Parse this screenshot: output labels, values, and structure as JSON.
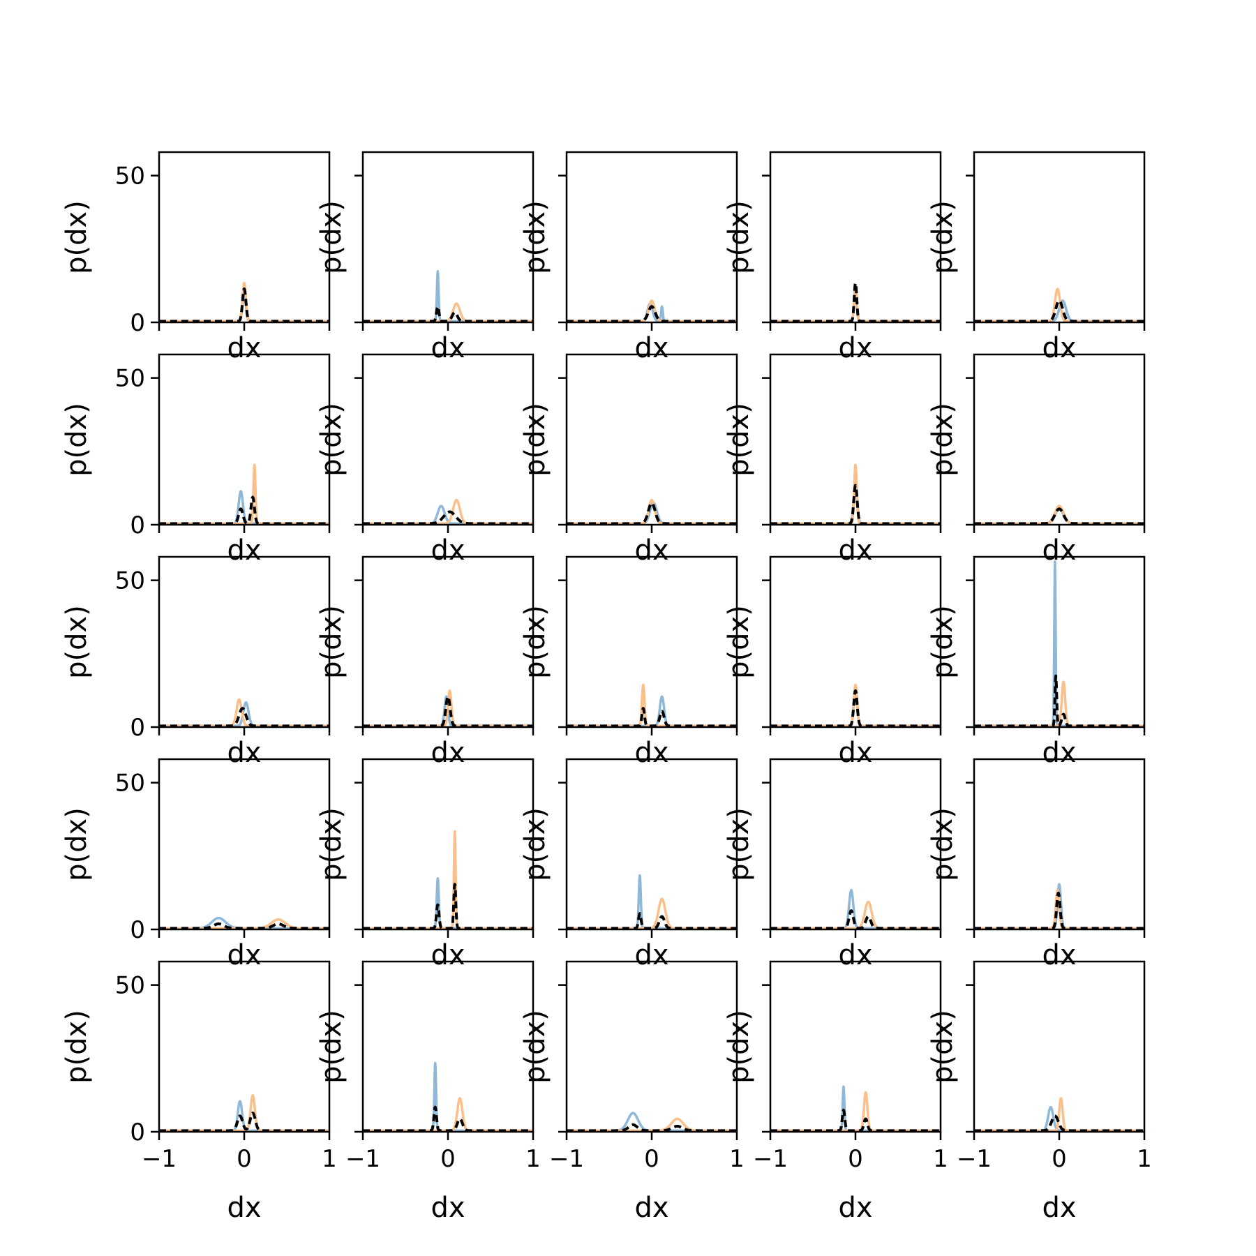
{
  "chart_data": {
    "type": "line",
    "layout": "grid",
    "rows": 5,
    "cols": 5,
    "xlabel": "dx",
    "ylabel": "p(dx)",
    "xlim": [
      -1,
      1
    ],
    "ylim": [
      0,
      58
    ],
    "xticks": [
      -1,
      0,
      1
    ],
    "xtick_labels": [
      "−1",
      "0",
      "1"
    ],
    "yticks": [
      0,
      50
    ],
    "ytick_labels": [
      "0",
      "50"
    ],
    "grid": false,
    "series_styles": [
      {
        "key": "blue",
        "color": "#8fb8d8",
        "dash": "solid"
      },
      {
        "key": "orange",
        "color": "#fbbf8a",
        "dash": "solid"
      },
      {
        "key": "black",
        "color": "#000000",
        "dash": "dashed"
      }
    ],
    "panels": [
      {
        "blue": [
          {
            "mu": 0.0,
            "sigma": 0.02,
            "amp": 9
          }
        ],
        "orange": [
          {
            "mu": 0.0,
            "sigma": 0.02,
            "amp": 13
          }
        ],
        "black": [
          {
            "mu": 0.0,
            "sigma": 0.02,
            "amp": 11
          }
        ]
      },
      {
        "blue": [
          {
            "mu": -0.12,
            "sigma": 0.01,
            "amp": 17
          }
        ],
        "orange": [
          {
            "mu": 0.1,
            "sigma": 0.04,
            "amp": 6
          }
        ],
        "black": [
          {
            "mu": -0.12,
            "sigma": 0.015,
            "amp": 5
          },
          {
            "mu": 0.08,
            "sigma": 0.03,
            "amp": 3
          }
        ]
      },
      {
        "blue": [
          {
            "mu": -0.02,
            "sigma": 0.03,
            "amp": 6
          },
          {
            "mu": 0.12,
            "sigma": 0.01,
            "amp": 5
          }
        ],
        "orange": [
          {
            "mu": 0.0,
            "sigma": 0.035,
            "amp": 7
          }
        ],
        "black": [
          {
            "mu": 0.0,
            "sigma": 0.04,
            "amp": 5
          }
        ]
      },
      {
        "blue": [
          {
            "mu": 0.0,
            "sigma": 0.015,
            "amp": 12
          }
        ],
        "orange": [
          {
            "mu": 0.0,
            "sigma": 0.015,
            "amp": 12
          }
        ],
        "black": [
          {
            "mu": 0.0,
            "sigma": 0.015,
            "amp": 13
          }
        ]
      },
      {
        "blue": [
          {
            "mu": 0.04,
            "sigma": 0.04,
            "amp": 7
          }
        ],
        "orange": [
          {
            "mu": -0.02,
            "sigma": 0.03,
            "amp": 11
          }
        ],
        "black": [
          {
            "mu": 0.0,
            "sigma": 0.04,
            "amp": 7
          }
        ]
      },
      {
        "blue": [
          {
            "mu": -0.04,
            "sigma": 0.025,
            "amp": 11
          }
        ],
        "orange": [
          {
            "mu": 0.12,
            "sigma": 0.012,
            "amp": 20
          }
        ],
        "black": [
          {
            "mu": -0.04,
            "sigma": 0.025,
            "amp": 5
          },
          {
            "mu": 0.1,
            "sigma": 0.02,
            "amp": 9
          }
        ]
      },
      {
        "blue": [
          {
            "mu": -0.08,
            "sigma": 0.04,
            "amp": 6
          }
        ],
        "orange": [
          {
            "mu": 0.1,
            "sigma": 0.04,
            "amp": 8
          }
        ],
        "black": [
          {
            "mu": 0.02,
            "sigma": 0.07,
            "amp": 4
          }
        ]
      },
      {
        "blue": [
          {
            "mu": 0.02,
            "sigma": 0.04,
            "amp": 7
          }
        ],
        "orange": [
          {
            "mu": 0.0,
            "sigma": 0.035,
            "amp": 8
          }
        ],
        "black": [
          {
            "mu": 0.0,
            "sigma": 0.04,
            "amp": 7
          }
        ]
      },
      {
        "blue": [
          {
            "mu": 0.0,
            "sigma": 0.02,
            "amp": 14
          }
        ],
        "orange": [
          {
            "mu": 0.0,
            "sigma": 0.015,
            "amp": 20
          }
        ],
        "black": [
          {
            "mu": 0.0,
            "sigma": 0.02,
            "amp": 13
          }
        ]
      },
      {
        "blue": [
          {
            "mu": 0.0,
            "sigma": 0.05,
            "amp": 5
          }
        ],
        "orange": [
          {
            "mu": 0.0,
            "sigma": 0.05,
            "amp": 6
          }
        ],
        "black": [
          {
            "mu": 0.0,
            "sigma": 0.05,
            "amp": 5
          }
        ]
      },
      {
        "blue": [
          {
            "mu": 0.02,
            "sigma": 0.03,
            "amp": 8
          }
        ],
        "orange": [
          {
            "mu": -0.06,
            "sigma": 0.03,
            "amp": 9
          }
        ],
        "black": [
          {
            "mu": -0.02,
            "sigma": 0.04,
            "amp": 6
          }
        ]
      },
      {
        "blue": [
          {
            "mu": -0.02,
            "sigma": 0.02,
            "amp": 10
          }
        ],
        "orange": [
          {
            "mu": 0.02,
            "sigma": 0.02,
            "amp": 12
          }
        ],
        "black": [
          {
            "mu": 0.0,
            "sigma": 0.025,
            "amp": 10
          }
        ]
      },
      {
        "blue": [
          {
            "mu": 0.12,
            "sigma": 0.025,
            "amp": 10
          }
        ],
        "orange": [
          {
            "mu": -0.1,
            "sigma": 0.015,
            "amp": 14
          }
        ],
        "black": [
          {
            "mu": -0.1,
            "sigma": 0.015,
            "amp": 6
          },
          {
            "mu": 0.12,
            "sigma": 0.025,
            "amp": 5
          }
        ]
      },
      {
        "blue": [
          {
            "mu": 0.0,
            "sigma": 0.02,
            "amp": 12
          }
        ],
        "orange": [
          {
            "mu": 0.0,
            "sigma": 0.02,
            "amp": 14
          }
        ],
        "black": [
          {
            "mu": 0.0,
            "sigma": 0.02,
            "amp": 12
          }
        ]
      },
      {
        "blue": [
          {
            "mu": -0.05,
            "sigma": 0.008,
            "amp": 56
          }
        ],
        "orange": [
          {
            "mu": 0.05,
            "sigma": 0.02,
            "amp": 15
          }
        ],
        "black": [
          {
            "mu": -0.04,
            "sigma": 0.01,
            "amp": 17
          },
          {
            "mu": 0.05,
            "sigma": 0.02,
            "amp": 4
          }
        ]
      },
      {
        "blue": [
          {
            "mu": -0.3,
            "sigma": 0.08,
            "amp": 3.5
          }
        ],
        "orange": [
          {
            "mu": 0.4,
            "sigma": 0.08,
            "amp": 3
          }
        ],
        "black": [
          {
            "mu": -0.3,
            "sigma": 0.06,
            "amp": 1.5
          },
          {
            "mu": 0.4,
            "sigma": 0.06,
            "amp": 1.5
          }
        ]
      },
      {
        "blue": [
          {
            "mu": -0.12,
            "sigma": 0.012,
            "amp": 17
          }
        ],
        "orange": [
          {
            "mu": 0.08,
            "sigma": 0.01,
            "amp": 33
          }
        ],
        "black": [
          {
            "mu": -0.12,
            "sigma": 0.015,
            "amp": 8
          },
          {
            "mu": 0.08,
            "sigma": 0.012,
            "amp": 15
          }
        ]
      },
      {
        "blue": [
          {
            "mu": -0.14,
            "sigma": 0.012,
            "amp": 18
          }
        ],
        "orange": [
          {
            "mu": 0.12,
            "sigma": 0.04,
            "amp": 10
          }
        ],
        "black": [
          {
            "mu": -0.14,
            "sigma": 0.015,
            "amp": 5
          },
          {
            "mu": 0.12,
            "sigma": 0.03,
            "amp": 4
          }
        ]
      },
      {
        "blue": [
          {
            "mu": -0.05,
            "sigma": 0.025,
            "amp": 13
          }
        ],
        "orange": [
          {
            "mu": 0.15,
            "sigma": 0.04,
            "amp": 9
          }
        ],
        "black": [
          {
            "mu": -0.05,
            "sigma": 0.025,
            "amp": 6
          },
          {
            "mu": 0.15,
            "sigma": 0.03,
            "amp": 4
          }
        ]
      },
      {
        "blue": [
          {
            "mu": 0.0,
            "sigma": 0.02,
            "amp": 15
          }
        ],
        "orange": [
          {
            "mu": -0.02,
            "sigma": 0.02,
            "amp": 13
          }
        ],
        "black": [
          {
            "mu": -0.01,
            "sigma": 0.02,
            "amp": 12
          }
        ]
      },
      {
        "blue": [
          {
            "mu": -0.05,
            "sigma": 0.025,
            "amp": 10
          }
        ],
        "orange": [
          {
            "mu": 0.1,
            "sigma": 0.025,
            "amp": 12
          }
        ],
        "black": [
          {
            "mu": -0.05,
            "sigma": 0.03,
            "amp": 5
          },
          {
            "mu": 0.1,
            "sigma": 0.03,
            "amp": 6
          }
        ]
      },
      {
        "blue": [
          {
            "mu": -0.15,
            "sigma": 0.01,
            "amp": 23
          }
        ],
        "orange": [
          {
            "mu": 0.14,
            "sigma": 0.03,
            "amp": 11
          }
        ],
        "black": [
          {
            "mu": -0.15,
            "sigma": 0.015,
            "amp": 8
          },
          {
            "mu": 0.14,
            "sigma": 0.03,
            "amp": 4
          }
        ]
      },
      {
        "blue": [
          {
            "mu": -0.22,
            "sigma": 0.06,
            "amp": 6
          }
        ],
        "orange": [
          {
            "mu": 0.3,
            "sigma": 0.07,
            "amp": 4
          }
        ],
        "black": [
          {
            "mu": -0.22,
            "sigma": 0.05,
            "amp": 2
          },
          {
            "mu": 0.3,
            "sigma": 0.06,
            "amp": 1.5
          }
        ]
      },
      {
        "blue": [
          {
            "mu": -0.14,
            "sigma": 0.01,
            "amp": 15
          }
        ],
        "orange": [
          {
            "mu": 0.12,
            "sigma": 0.02,
            "amp": 13
          }
        ],
        "black": [
          {
            "mu": -0.14,
            "sigma": 0.015,
            "amp": 7
          },
          {
            "mu": 0.12,
            "sigma": 0.02,
            "amp": 4
          }
        ]
      },
      {
        "blue": [
          {
            "mu": -0.1,
            "sigma": 0.03,
            "amp": 8
          }
        ],
        "orange": [
          {
            "mu": 0.02,
            "sigma": 0.02,
            "amp": 11
          }
        ],
        "black": [
          {
            "mu": -0.05,
            "sigma": 0.04,
            "amp": 5
          }
        ]
      }
    ]
  }
}
